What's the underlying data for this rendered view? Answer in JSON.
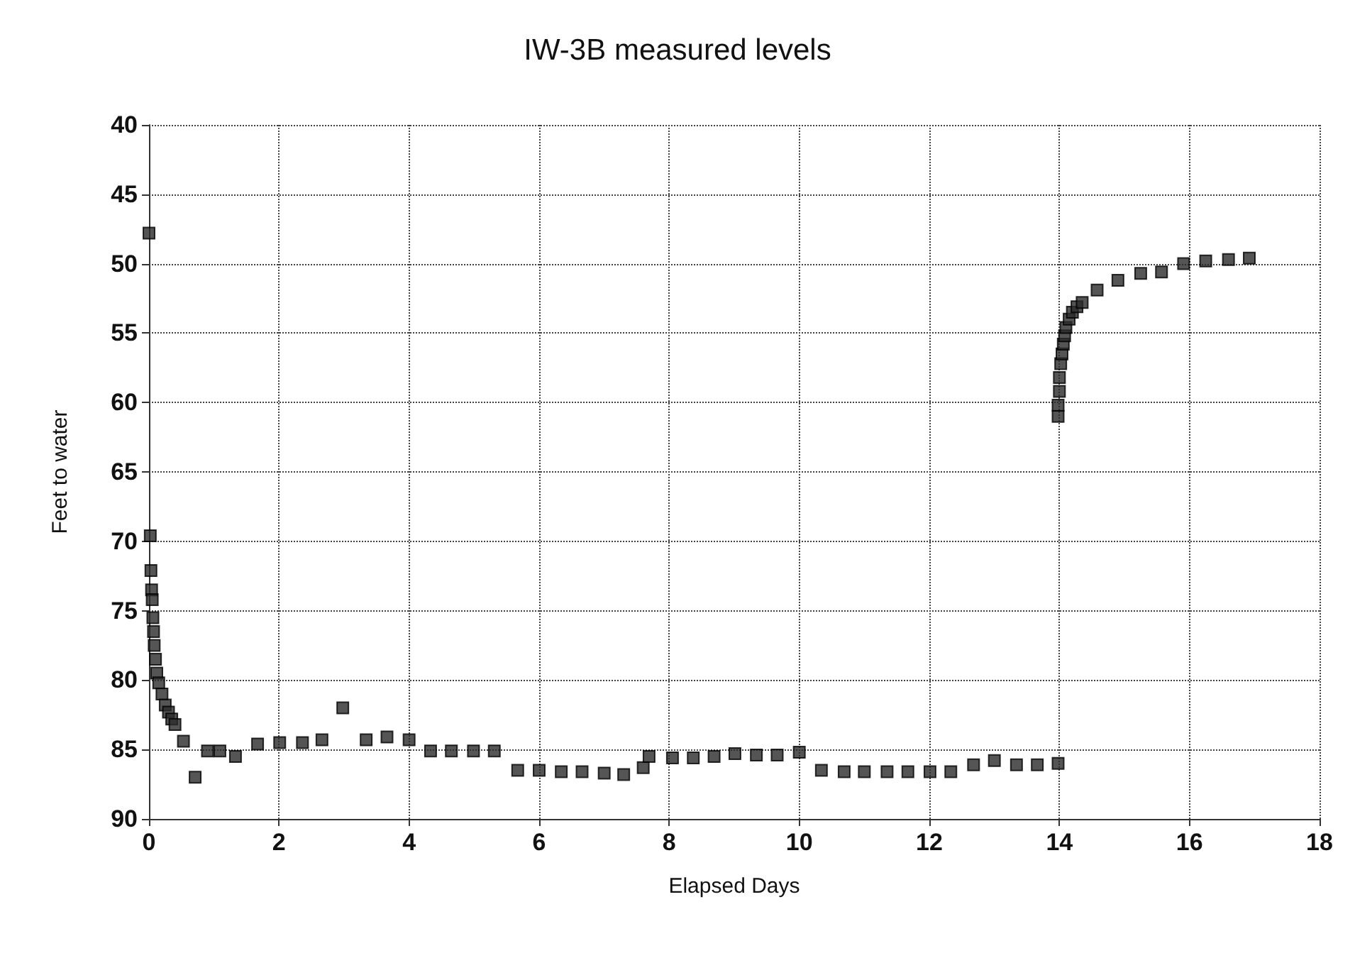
{
  "chart_data": {
    "type": "scatter",
    "title": "IW-3B measured levels",
    "xlabel": "Elapsed Days",
    "ylabel": "Feet to water",
    "series": [
      {
        "color": "#2a2a2a",
        "x": [
          0,
          0.02,
          0.03,
          0.04,
          0.05,
          0.06,
          0.07,
          0.08,
          0.1,
          0.12,
          0.15,
          0.2,
          0.25,
          0.3,
          0.35,
          0.4,
          0.53,
          0.71,
          0.9,
          1.09,
          1.33,
          1.67,
          2.01,
          2.36,
          2.66,
          2.98,
          3.34,
          3.66,
          4.0,
          4.33,
          4.65,
          4.99,
          5.31,
          5.67,
          6.0,
          6.34,
          6.66,
          7.0,
          7.3,
          7.6,
          7.69,
          8.05,
          8.37,
          8.69,
          9.01,
          9.34,
          9.66,
          10.0,
          10.34,
          10.69,
          11.0,
          11.35,
          11.67,
          12.01,
          12.33,
          12.68,
          13.0,
          13.34,
          13.66,
          13.98,
          13.98,
          13.98,
          14.0,
          14.0,
          14.02,
          14.04,
          14.06,
          14.08,
          14.1,
          14.15,
          14.2,
          14.27,
          14.35,
          14.58,
          14.9,
          15.25,
          15.57,
          15.91,
          16.25,
          16.6,
          16.92
        ],
        "values": [
          47.8,
          69.6,
          72.1,
          73.5,
          74.2,
          75.5,
          76.5,
          77.5,
          78.5,
          79.5,
          80.2,
          81.0,
          81.8,
          82.3,
          82.8,
          83.2,
          84.4,
          87.0,
          85.1,
          85.1,
          85.5,
          84.6,
          84.5,
          84.5,
          84.3,
          82.0,
          84.3,
          84.1,
          84.3,
          85.1,
          85.1,
          85.1,
          85.1,
          86.5,
          86.5,
          86.6,
          86.6,
          86.7,
          86.8,
          86.3,
          85.5,
          85.6,
          85.6,
          85.5,
          85.3,
          85.4,
          85.4,
          85.2,
          86.5,
          86.6,
          86.6,
          86.6,
          86.6,
          86.6,
          86.6,
          86.1,
          85.8,
          86.1,
          86.1,
          86.0,
          61.0,
          60.2,
          59.2,
          58.2,
          57.2,
          56.5,
          55.8,
          55.2,
          54.6,
          54.0,
          53.5,
          53.1,
          52.8,
          51.9,
          51.2,
          50.7,
          50.6,
          50.0,
          49.8,
          49.7,
          49.6
        ]
      }
    ],
    "xlim": [
      0,
      18
    ],
    "xticks": [
      0,
      2,
      4,
      6,
      8,
      10,
      12,
      14,
      16,
      18
    ],
    "ylim": [
      90,
      40
    ],
    "yticks": [
      40,
      45,
      50,
      55,
      60,
      65,
      70,
      75,
      80,
      85,
      90
    ],
    "grid": true,
    "marker": "square"
  }
}
